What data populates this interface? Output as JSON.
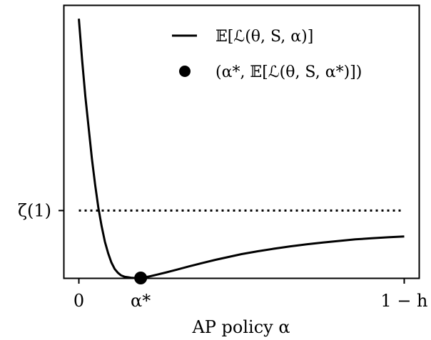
{
  "chart_data": {
    "type": "line",
    "title": "",
    "xlabel": "AP policy α",
    "ylabel": "",
    "xlim": [
      -0.045,
      1.045
    ],
    "ylim": [
      0.0,
      1.05
    ],
    "grid": false,
    "legend_position": "top-right",
    "x_ticks": [
      {
        "value": 0.0,
        "label": "0"
      },
      {
        "value": 0.19,
        "label": "α*"
      },
      {
        "value": 1.0,
        "label": "1 − h"
      }
    ],
    "y_ticks": [
      {
        "value": 0.26,
        "label": "ζ(1)"
      }
    ],
    "series": [
      {
        "name": "𝔼[ℒ(θ, S, α)]",
        "style": "solid",
        "color": "#000000",
        "x": [
          0.0,
          0.01,
          0.02,
          0.03,
          0.04,
          0.05,
          0.06,
          0.07,
          0.08,
          0.09,
          0.1,
          0.11,
          0.12,
          0.13,
          0.14,
          0.15,
          0.16,
          0.17,
          0.18,
          0.19,
          0.2,
          0.22,
          0.24,
          0.27,
          0.3,
          0.34,
          0.38,
          0.42,
          0.46,
          0.5,
          0.55,
          0.6,
          0.65,
          0.7,
          0.75,
          0.8,
          0.85,
          0.9,
          0.95,
          1.0
        ],
        "y": [
          1.0,
          0.84,
          0.7,
          0.58,
          0.46,
          0.36,
          0.27,
          0.2,
          0.14,
          0.095,
          0.06,
          0.035,
          0.02,
          0.01,
          0.005,
          0.003,
          0.001,
          0.0,
          0.0,
          0.0,
          0.002,
          0.007,
          0.013,
          0.022,
          0.032,
          0.045,
          0.058,
          0.07,
          0.081,
          0.092,
          0.103,
          0.113,
          0.122,
          0.13,
          0.137,
          0.143,
          0.149,
          0.153,
          0.157,
          0.16
        ]
      },
      {
        "name": "(α*, 𝔼[ℒ(θ, S, α*)])",
        "style": "marker",
        "color": "#000000",
        "x": [
          0.19
        ],
        "y": [
          0.0
        ]
      }
    ],
    "reference_lines": [
      {
        "orientation": "horizontal",
        "value": 0.26,
        "style": "dotted",
        "label": "ζ(1)"
      }
    ]
  }
}
